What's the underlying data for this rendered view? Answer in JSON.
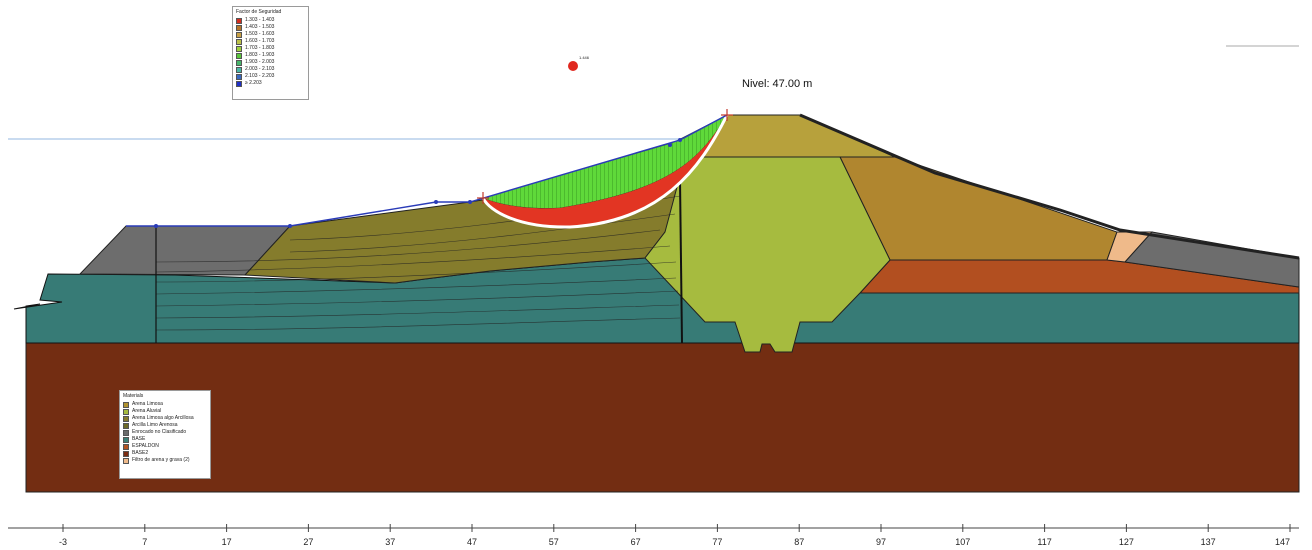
{
  "water_level_label": "Nivel: 47.00 m",
  "critical_fs_label": "1.446",
  "fs_legend": {
    "title": "Factor de Seguridad",
    "items": [
      {
        "label": "1.303 - 1.403",
        "color": "#d22c1e"
      },
      {
        "label": "1.403 - 1.503",
        "color": "#b5752a"
      },
      {
        "label": "1.503 - 1.603",
        "color": "#c8a044"
      },
      {
        "label": "1.603 - 1.703",
        "color": "#bcc14a"
      },
      {
        "label": "1.703 - 1.803",
        "color": "#9fd13c"
      },
      {
        "label": "1.803 - 1.903",
        "color": "#59c63a"
      },
      {
        "label": "1.903 - 2.003",
        "color": "#46b56a"
      },
      {
        "label": "2.003 - 2.103",
        "color": "#49b6a5"
      },
      {
        "label": "2.103 - 2.203",
        "color": "#3a68bf"
      },
      {
        "label": "≥ 2.203",
        "color": "#1f2fc6"
      }
    ]
  },
  "materials_legend": {
    "title": "Materials",
    "items": [
      {
        "label": "Arena Limosa",
        "color": "#b0922f"
      },
      {
        "label": "Arena Aluvial",
        "color": "#a6bb3f"
      },
      {
        "label": "Arena Limosa algo Arcillosa",
        "color": "#857a2c"
      },
      {
        "label": "Arcilla Limo Arenosa",
        "color": "#6e6a26"
      },
      {
        "label": "Enrocado no Clasificado",
        "color": "#6b6b6b"
      },
      {
        "label": "BASE",
        "color": "#3b8076"
      },
      {
        "label": "ESPALDON",
        "color": "#b35220"
      },
      {
        "label": "BASE2",
        "color": "#7a2c12"
      },
      {
        "label": "Filtro de arena y grava (2)",
        "color": "#efba8a"
      }
    ]
  },
  "axis": {
    "ticks": [
      "-3",
      "7",
      "17",
      "27",
      "37",
      "47",
      "57",
      "67",
      "77",
      "87",
      "97",
      "107",
      "117",
      "127",
      "137",
      "147"
    ]
  },
  "colors": {
    "base2": "#732d12",
    "base": "#377b76",
    "gray_fill": "#6d6d6d",
    "olive": "#857c2c",
    "core": "#a6bb3f",
    "shell": "#b0862f",
    "crest": "#b7a13c",
    "espaldon": "#b24f20",
    "filter": "#efba8a",
    "slip_red": "#e23523",
    "slip_green": "#5fd93a",
    "water_line": "#a9c5e6"
  }
}
